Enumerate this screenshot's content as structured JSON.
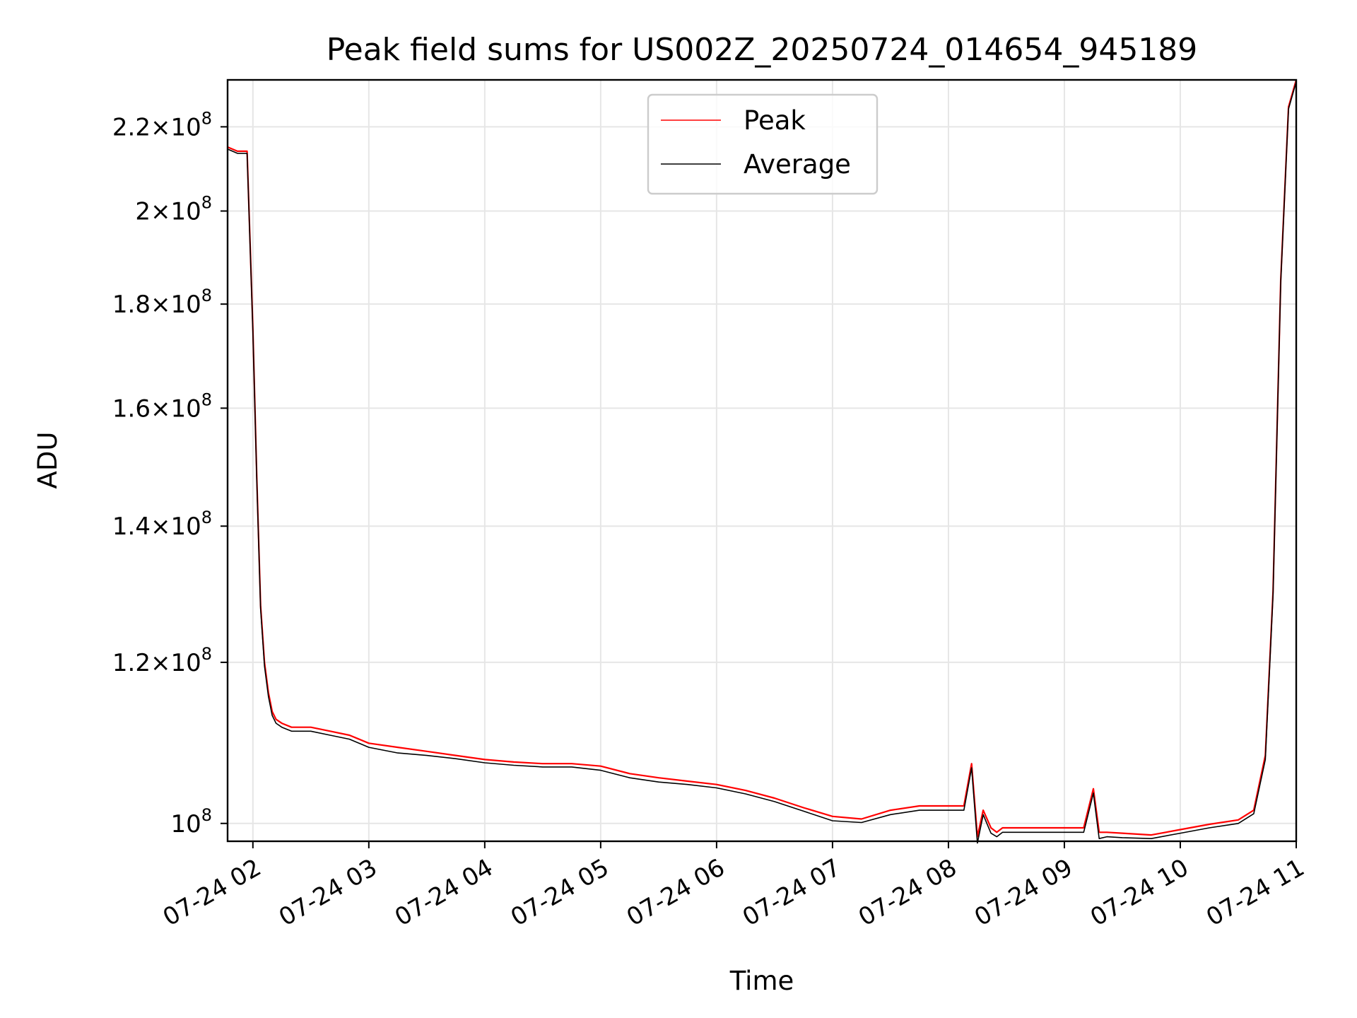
{
  "chart_data": {
    "type": "line",
    "title": "Peak field sums for US002Z_20250724_014654_945189",
    "xlabel": "Time",
    "ylabel": "ADU",
    "y_scale": "log",
    "xlim": [
      "2025-07-24 01:46:54",
      "2025-07-24 11:00:00"
    ],
    "ylim": [
      98000000,
      232000000
    ],
    "x_ticks": [
      {
        "value": "2025-07-24 02:00",
        "label": "07-24 02"
      },
      {
        "value": "2025-07-24 03:00",
        "label": "07-24 03"
      },
      {
        "value": "2025-07-24 04:00",
        "label": "07-24 04"
      },
      {
        "value": "2025-07-24 05:00",
        "label": "07-24 05"
      },
      {
        "value": "2025-07-24 06:00",
        "label": "07-24 06"
      },
      {
        "value": "2025-07-24 07:00",
        "label": "07-24 07"
      },
      {
        "value": "2025-07-24 08:00",
        "label": "07-24 08"
      },
      {
        "value": "2025-07-24 09:00",
        "label": "07-24 09"
      },
      {
        "value": "2025-07-24 10:00",
        "label": "07-24 10"
      },
      {
        "value": "2025-07-24 11:00",
        "label": "07-24 11"
      }
    ],
    "y_ticks": [
      {
        "value": 100000000,
        "mantissa": "",
        "exp": "8"
      },
      {
        "value": 120000000,
        "mantissa": "1.2",
        "exp": "8"
      },
      {
        "value": 140000000,
        "mantissa": "1.4",
        "exp": "8"
      },
      {
        "value": 160000000,
        "mantissa": "1.6",
        "exp": "8"
      },
      {
        "value": 180000000,
        "mantissa": "1.8",
        "exp": "8"
      },
      {
        "value": 200000000,
        "mantissa": "2",
        "exp": "8"
      },
      {
        "value": 220000000,
        "mantissa": "2.2",
        "exp": "8"
      }
    ],
    "grid": true,
    "legend_position": "top-center",
    "series": [
      {
        "name": "Peak",
        "color": "#ff0000",
        "x": [
          "2025-07-24 01:47",
          "2025-07-24 01:52",
          "2025-07-24 01:57",
          "2025-07-24 02:00",
          "2025-07-24 02:02",
          "2025-07-24 02:04",
          "2025-07-24 02:06",
          "2025-07-24 02:08",
          "2025-07-24 02:10",
          "2025-07-24 02:12",
          "2025-07-24 02:15",
          "2025-07-24 02:20",
          "2025-07-24 02:30",
          "2025-07-24 02:40",
          "2025-07-24 02:50",
          "2025-07-24 03:00",
          "2025-07-24 03:15",
          "2025-07-24 03:30",
          "2025-07-24 03:45",
          "2025-07-24 04:00",
          "2025-07-24 04:15",
          "2025-07-24 04:30",
          "2025-07-24 04:45",
          "2025-07-24 05:00",
          "2025-07-24 05:15",
          "2025-07-24 05:30",
          "2025-07-24 05:45",
          "2025-07-24 06:00",
          "2025-07-24 06:15",
          "2025-07-24 06:30",
          "2025-07-24 06:45",
          "2025-07-24 07:00",
          "2025-07-24 07:15",
          "2025-07-24 07:30",
          "2025-07-24 07:45",
          "2025-07-24 08:00",
          "2025-07-24 08:08",
          "2025-07-24 08:12",
          "2025-07-24 08:15",
          "2025-07-24 08:18",
          "2025-07-24 08:22",
          "2025-07-24 08:25",
          "2025-07-24 08:28",
          "2025-07-24 08:35",
          "2025-07-24 08:45",
          "2025-07-24 09:00",
          "2025-07-24 09:10",
          "2025-07-24 09:15",
          "2025-07-24 09:18",
          "2025-07-24 09:22",
          "2025-07-24 09:30",
          "2025-07-24 09:45",
          "2025-07-24 10:00",
          "2025-07-24 10:15",
          "2025-07-24 10:30",
          "2025-07-24 10:38",
          "2025-07-24 10:44",
          "2025-07-24 10:48",
          "2025-07-24 10:52",
          "2025-07-24 10:56",
          "2025-07-24 11:00"
        ],
        "values": [
          215000000,
          214000000,
          214000000,
          175000000,
          148000000,
          128000000,
          120000000,
          116000000,
          113500000,
          112500000,
          112000000,
          111500000,
          111500000,
          111000000,
          110500000,
          109500000,
          109000000,
          108500000,
          108000000,
          107500000,
          107200000,
          107000000,
          107000000,
          106700000,
          105800000,
          105300000,
          104900000,
          104500000,
          103800000,
          102900000,
          101800000,
          100800000,
          100500000,
          101500000,
          102000000,
          102000000,
          102000000,
          107000000,
          98500000,
          101500000,
          99500000,
          99000000,
          99500000,
          99500000,
          99500000,
          99500000,
          99500000,
          104000000,
          99000000,
          99000000,
          98900000,
          98700000,
          99300000,
          99900000,
          100400000,
          101500000,
          108000000,
          130000000,
          185000000,
          225000000,
          232000000
        ]
      },
      {
        "name": "Average",
        "color": "#000000",
        "x": [
          "2025-07-24 01:47",
          "2025-07-24 01:52",
          "2025-07-24 01:57",
          "2025-07-24 02:00",
          "2025-07-24 02:02",
          "2025-07-24 02:04",
          "2025-07-24 02:06",
          "2025-07-24 02:08",
          "2025-07-24 02:10",
          "2025-07-24 02:12",
          "2025-07-24 02:15",
          "2025-07-24 02:20",
          "2025-07-24 02:30",
          "2025-07-24 02:40",
          "2025-07-24 02:50",
          "2025-07-24 03:00",
          "2025-07-24 03:15",
          "2025-07-24 03:30",
          "2025-07-24 03:45",
          "2025-07-24 04:00",
          "2025-07-24 04:15",
          "2025-07-24 04:30",
          "2025-07-24 04:45",
          "2025-07-24 05:00",
          "2025-07-24 05:15",
          "2025-07-24 05:30",
          "2025-07-24 05:45",
          "2025-07-24 06:00",
          "2025-07-24 06:15",
          "2025-07-24 06:30",
          "2025-07-24 06:45",
          "2025-07-24 07:00",
          "2025-07-24 07:15",
          "2025-07-24 07:30",
          "2025-07-24 07:45",
          "2025-07-24 08:00",
          "2025-07-24 08:08",
          "2025-07-24 08:12",
          "2025-07-24 08:15",
          "2025-07-24 08:18",
          "2025-07-24 08:22",
          "2025-07-24 08:25",
          "2025-07-24 08:28",
          "2025-07-24 08:35",
          "2025-07-24 08:45",
          "2025-07-24 09:00",
          "2025-07-24 09:10",
          "2025-07-24 09:15",
          "2025-07-24 09:18",
          "2025-07-24 09:22",
          "2025-07-24 09:30",
          "2025-07-24 09:45",
          "2025-07-24 10:00",
          "2025-07-24 10:15",
          "2025-07-24 10:30",
          "2025-07-24 10:38",
          "2025-07-24 10:44",
          "2025-07-24 10:48",
          "2025-07-24 10:52",
          "2025-07-24 10:56",
          "2025-07-24 11:00"
        ],
        "values": [
          214500000,
          213500000,
          213500000,
          174500000,
          147500000,
          127500000,
          119500000,
          115500000,
          113000000,
          112000000,
          111500000,
          111000000,
          111000000,
          110500000,
          110000000,
          109000000,
          108300000,
          108000000,
          107600000,
          107100000,
          106800000,
          106600000,
          106600000,
          106200000,
          105300000,
          104800000,
          104500000,
          104100000,
          103400000,
          102500000,
          101400000,
          100300000,
          100100000,
          101000000,
          101500000,
          101500000,
          101500000,
          106500000,
          97800000,
          101000000,
          98900000,
          98500000,
          99000000,
          99000000,
          99000000,
          99000000,
          99000000,
          103500000,
          98300000,
          98500000,
          98400000,
          98300000,
          98900000,
          99500000,
          100000000,
          101100000,
          107500000,
          129500000,
          184500000,
          224500000,
          231500000
        ]
      }
    ]
  }
}
